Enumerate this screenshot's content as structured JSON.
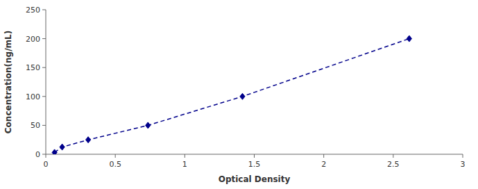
{
  "chart_data": {
    "type": "line",
    "x": [
      0.063,
      0.118,
      0.305,
      0.735,
      1.415,
      2.615
    ],
    "values": [
      3.125,
      12.5,
      25.0,
      50.0,
      100.0,
      200.0
    ],
    "color": "#00008B",
    "marker": "diamond",
    "line_style": "dashed",
    "xlabel": "Optical Density",
    "ylabel": "Concentration(ng/mL)",
    "xlim": [
      0,
      3
    ],
    "ylim": [
      0,
      250
    ],
    "xticks": [
      0,
      0.5,
      1,
      1.5,
      2,
      2.5,
      3
    ],
    "yticks": [
      0,
      50,
      100,
      150,
      200,
      250
    ],
    "grid": false
  }
}
